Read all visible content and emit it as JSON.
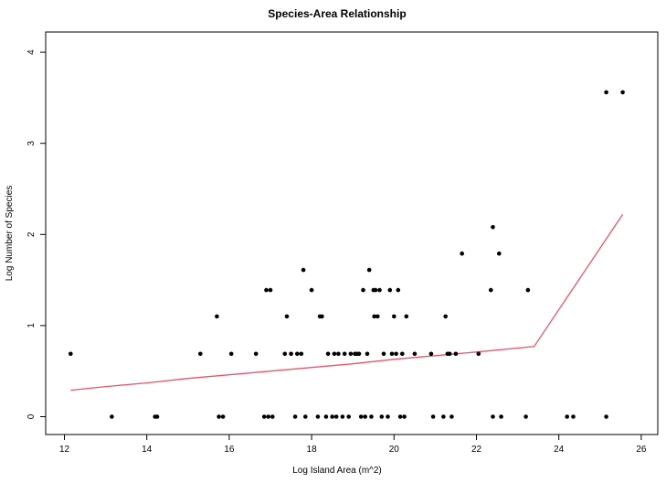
{
  "chart_data": {
    "type": "scatter",
    "title": "Species-Area Relationship",
    "xlabel": "Log Island Area (m^2)",
    "ylabel": "Log Number of Species",
    "xlim": [
      12,
      26.2
    ],
    "ylim": [
      0,
      4
    ],
    "xticks": [
      12,
      14,
      16,
      18,
      20,
      22,
      24,
      26
    ],
    "yticks": [
      0,
      1,
      2,
      3,
      4
    ],
    "grid": false,
    "legend": "none",
    "colors": {
      "points": "#000000",
      "fit_line": "#e8546a"
    },
    "series": [
      {
        "type": "scatter",
        "points": [
          [
            12.15,
            0.69
          ],
          [
            13.15,
            0
          ],
          [
            14.2,
            0
          ],
          [
            14.25,
            0
          ],
          [
            15.3,
            0.69
          ],
          [
            15.7,
            1.1
          ],
          [
            15.75,
            0
          ],
          [
            15.85,
            0
          ],
          [
            16.05,
            0.69
          ],
          [
            16.65,
            0.69
          ],
          [
            16.85,
            0
          ],
          [
            16.9,
            1.39
          ],
          [
            16.95,
            0
          ],
          [
            17.0,
            1.39
          ],
          [
            17.05,
            0
          ],
          [
            17.35,
            0.69
          ],
          [
            17.4,
            1.1
          ],
          [
            17.5,
            0.69
          ],
          [
            17.6,
            0
          ],
          [
            17.65,
            0.69
          ],
          [
            17.75,
            0.69
          ],
          [
            17.8,
            1.61
          ],
          [
            17.85,
            0
          ],
          [
            18.0,
            1.39
          ],
          [
            18.15,
            0
          ],
          [
            18.2,
            1.1
          ],
          [
            18.25,
            1.1
          ],
          [
            18.35,
            0
          ],
          [
            18.4,
            0.69
          ],
          [
            18.5,
            0
          ],
          [
            18.55,
            0.69
          ],
          [
            18.6,
            0
          ],
          [
            18.65,
            0.69
          ],
          [
            18.75,
            0
          ],
          [
            18.8,
            0.69
          ],
          [
            18.9,
            0
          ],
          [
            18.95,
            0.69
          ],
          [
            19.05,
            0.69
          ],
          [
            19.1,
            0.69
          ],
          [
            19.15,
            0.69
          ],
          [
            19.2,
            0
          ],
          [
            19.25,
            1.39
          ],
          [
            19.3,
            0
          ],
          [
            19.35,
            0.69
          ],
          [
            19.4,
            1.61
          ],
          [
            19.45,
            0
          ],
          [
            19.5,
            1.39
          ],
          [
            19.52,
            1.1
          ],
          [
            19.55,
            1.39
          ],
          [
            19.6,
            1.1
          ],
          [
            19.65,
            1.39
          ],
          [
            19.7,
            0
          ],
          [
            19.75,
            0.69
          ],
          [
            19.85,
            0
          ],
          [
            19.95,
            0.69
          ],
          [
            19.9,
            1.39
          ],
          [
            20.0,
            1.1
          ],
          [
            20.05,
            0.69
          ],
          [
            20.1,
            1.39
          ],
          [
            20.15,
            0
          ],
          [
            20.2,
            0.69
          ],
          [
            20.25,
            0
          ],
          [
            20.3,
            1.1
          ],
          [
            20.5,
            0.69
          ],
          [
            20.9,
            0.69
          ],
          [
            20.95,
            0
          ],
          [
            21.2,
            0
          ],
          [
            21.25,
            1.1
          ],
          [
            21.3,
            0.69
          ],
          [
            21.35,
            0.69
          ],
          [
            21.4,
            0
          ],
          [
            21.5,
            0.69
          ],
          [
            21.65,
            1.79
          ],
          [
            22.05,
            0.69
          ],
          [
            22.35,
            1.39
          ],
          [
            22.4,
            0
          ],
          [
            22.4,
            2.08
          ],
          [
            22.55,
            1.79
          ],
          [
            22.6,
            0
          ],
          [
            23.2,
            0
          ],
          [
            23.25,
            1.39
          ],
          [
            24.2,
            0
          ],
          [
            24.35,
            0
          ],
          [
            25.15,
            0
          ],
          [
            25.15,
            3.56
          ],
          [
            25.55,
            3.56
          ]
        ]
      },
      {
        "type": "line",
        "points": [
          [
            12.15,
            0.29
          ],
          [
            13.0,
            0.33
          ],
          [
            14.0,
            0.37
          ],
          [
            15.0,
            0.42
          ],
          [
            16.0,
            0.46
          ],
          [
            17.0,
            0.5
          ],
          [
            18.0,
            0.54
          ],
          [
            19.0,
            0.58
          ],
          [
            20.0,
            0.63
          ],
          [
            21.0,
            0.67
          ],
          [
            22.0,
            0.71
          ],
          [
            23.4,
            0.77
          ],
          [
            25.55,
            2.22
          ]
        ]
      }
    ]
  }
}
